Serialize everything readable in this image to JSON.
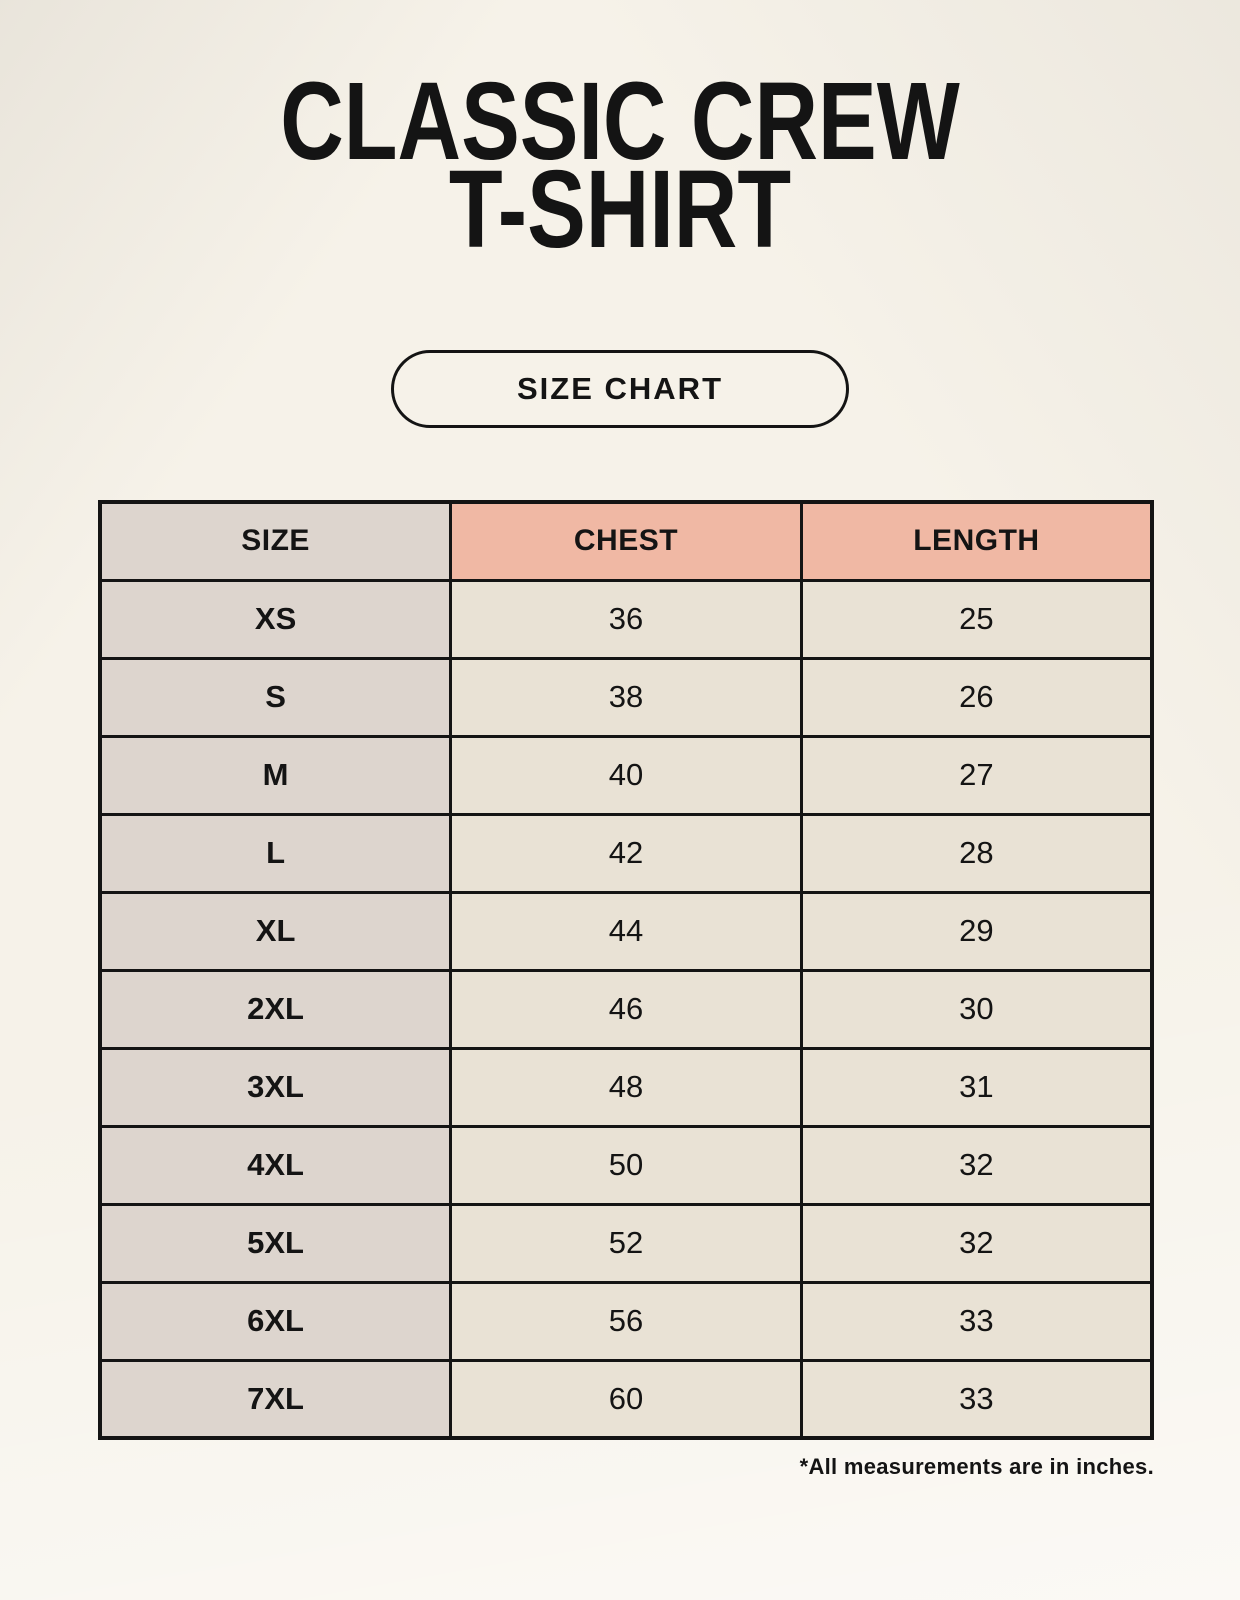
{
  "page": {
    "title_line1": "CLASSIC CREW",
    "title_line2": "T-SHIRT",
    "badge_label": "SIZE CHART",
    "footnote": "*All measurements are in inches."
  },
  "colors": {
    "background": "#f6f2e9",
    "header_pink": "#f0b8a4",
    "size_column_taupe": "#ddd5ce",
    "cell_beige": "#e9e2d5",
    "border_and_text": "#141414"
  },
  "chart_data": {
    "type": "table",
    "title": "Classic Crew T-Shirt Size Chart",
    "unit_note": "*All measurements are in inches.",
    "columns": [
      "SIZE",
      "CHEST",
      "LENGTH"
    ],
    "rows": [
      [
        "XS",
        "36",
        "25"
      ],
      [
        "S",
        "38",
        "26"
      ],
      [
        "M",
        "40",
        "27"
      ],
      [
        "L",
        "42",
        "28"
      ],
      [
        "XL",
        "44",
        "29"
      ],
      [
        "2XL",
        "46",
        "30"
      ],
      [
        "3XL",
        "48",
        "31"
      ],
      [
        "4XL",
        "50",
        "32"
      ],
      [
        "5XL",
        "52",
        "32"
      ],
      [
        "6XL",
        "56",
        "33"
      ],
      [
        "7XL",
        "60",
        "33"
      ]
    ]
  }
}
